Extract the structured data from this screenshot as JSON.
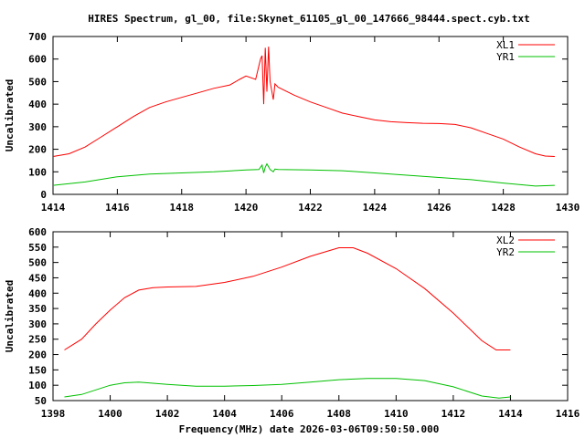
{
  "title": "HIRES Spectrum, gl_00, file:Skynet_61105_gl_00_147666_98444.spect.cyb.txt",
  "chart_data": [
    {
      "type": "line",
      "xlabel": "",
      "ylabel": "Uncalibrated",
      "xlim": [
        1414,
        1430
      ],
      "ylim": [
        0,
        700
      ],
      "xticks": [
        1414,
        1416,
        1418,
        1420,
        1422,
        1424,
        1426,
        1428,
        1430
      ],
      "yticks": [
        0,
        100,
        200,
        300,
        400,
        500,
        600,
        700
      ],
      "legend": "top-right",
      "series": [
        {
          "name": "XL1",
          "color": "#ff0000",
          "x": [
            1414.0,
            1414.5,
            1415,
            1415.5,
            1416,
            1416.5,
            1417,
            1417.5,
            1418,
            1418.5,
            1419,
            1419.5,
            1419.8,
            1420,
            1420.3,
            1420.45,
            1420.5,
            1420.55,
            1420.6,
            1420.65,
            1420.7,
            1420.75,
            1420.85,
            1420.9,
            1421,
            1421.5,
            1422,
            1422.5,
            1423,
            1423.5,
            1424,
            1424.5,
            1425,
            1425.5,
            1426,
            1426.5,
            1427,
            1427.5,
            1428,
            1428.5,
            1429,
            1429.3,
            1429.6
          ],
          "y": [
            168,
            180,
            210,
            255,
            300,
            345,
            385,
            410,
            430,
            450,
            470,
            485,
            510,
            525,
            510,
            600,
            615,
            400,
            650,
            455,
            655,
            500,
            420,
            490,
            475,
            440,
            410,
            385,
            360,
            345,
            330,
            322,
            318,
            315,
            314,
            310,
            295,
            270,
            245,
            210,
            180,
            170,
            168
          ]
        },
        {
          "name": "YR1",
          "color": "#00c000",
          "x": [
            1414,
            1415,
            1416,
            1417,
            1418,
            1419,
            1420,
            1420.4,
            1420.5,
            1420.55,
            1420.6,
            1420.65,
            1420.75,
            1420.85,
            1420.9,
            1421,
            1422,
            1423,
            1424,
            1425,
            1426,
            1427,
            1428,
            1429,
            1429.6
          ],
          "y": [
            40,
            55,
            78,
            90,
            95,
            100,
            108,
            110,
            130,
            95,
            120,
            135,
            110,
            100,
            112,
            110,
            108,
            105,
            95,
            85,
            75,
            65,
            50,
            37,
            40
          ]
        }
      ]
    },
    {
      "type": "line",
      "xlabel": "Frequency(MHz) date 2026-03-06T09:50:50.000",
      "ylabel": "Uncalibrated",
      "xlim": [
        1398,
        1416
      ],
      "ylim": [
        50,
        600
      ],
      "xticks": [
        1398,
        1400,
        1402,
        1404,
        1406,
        1408,
        1410,
        1412,
        1414,
        1416
      ],
      "yticks": [
        50,
        100,
        150,
        200,
        250,
        300,
        350,
        400,
        450,
        500,
        550,
        600
      ],
      "legend": "top-right",
      "series": [
        {
          "name": "XL2",
          "color": "#ff0000",
          "x": [
            1398.4,
            1399,
            1399.5,
            1400,
            1400.5,
            1401,
            1401.5,
            1402,
            1403,
            1404,
            1405,
            1406,
            1407,
            1408,
            1408.5,
            1409,
            1410,
            1411,
            1412,
            1413,
            1413.5,
            1414
          ],
          "y": [
            215,
            250,
            300,
            345,
            385,
            410,
            418,
            420,
            422,
            435,
            455,
            485,
            520,
            548,
            548,
            530,
            480,
            415,
            335,
            245,
            215,
            215
          ]
        },
        {
          "name": "YR2",
          "color": "#00c000",
          "x": [
            1398.4,
            1399,
            1400,
            1400.5,
            1401,
            1402,
            1403,
            1404,
            1405,
            1406,
            1407,
            1408,
            1409,
            1410,
            1411,
            1412,
            1413,
            1413.6,
            1414
          ],
          "y": [
            62,
            70,
            100,
            108,
            110,
            103,
            97,
            97,
            99,
            103,
            110,
            118,
            122,
            122,
            115,
            95,
            65,
            58,
            62
          ]
        }
      ]
    }
  ]
}
